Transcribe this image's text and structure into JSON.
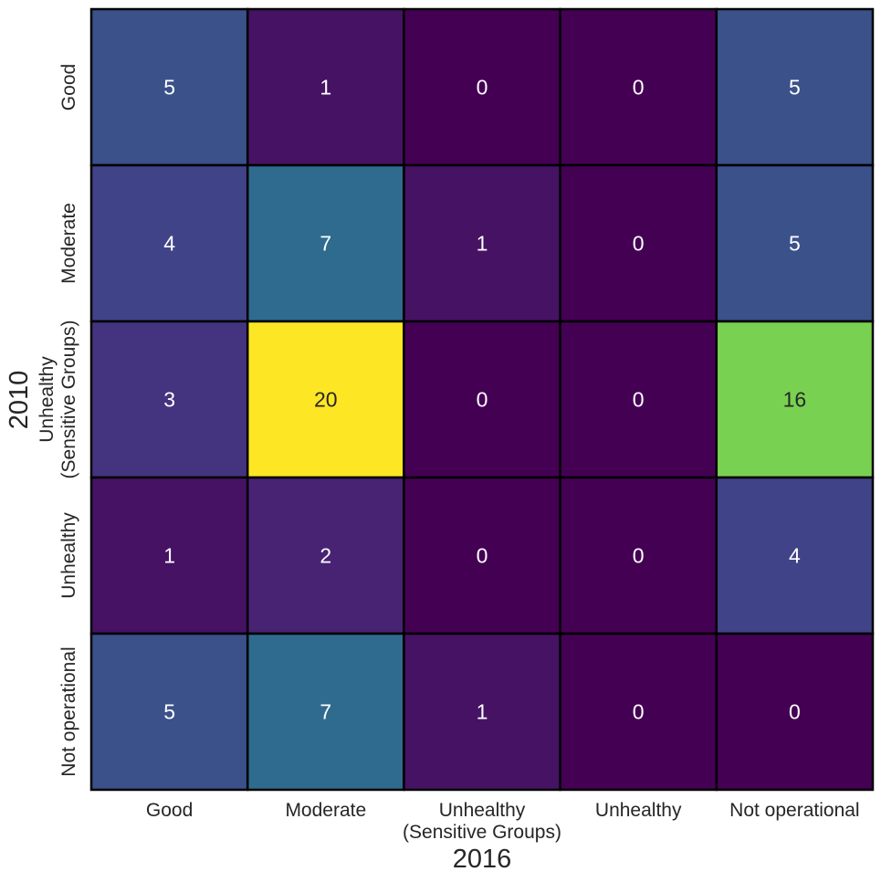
{
  "chart_data": {
    "type": "heatmap",
    "xlabel": "2016",
    "ylabel": "2010",
    "x_categories": [
      [
        "Good"
      ],
      [
        "Moderate"
      ],
      [
        "Unhealthy",
        "(Sensitive Groups)"
      ],
      [
        "Unhealthy"
      ],
      [
        "Not operational"
      ]
    ],
    "y_categories": [
      [
        "Good"
      ],
      [
        "Moderate"
      ],
      [
        "Unhealthy",
        "(Sensitive Groups)"
      ],
      [
        "Unhealthy"
      ],
      [
        "Not operational"
      ]
    ],
    "values": [
      [
        5,
        1,
        0,
        0,
        5
      ],
      [
        4,
        7,
        1,
        0,
        5
      ],
      [
        3,
        20,
        0,
        0,
        16
      ],
      [
        1,
        2,
        0,
        0,
        4
      ],
      [
        5,
        7,
        1,
        0,
        0
      ]
    ],
    "colormap": "viridis",
    "vmin": 0,
    "vmax": 20,
    "annotations": true,
    "colorbar": false
  }
}
